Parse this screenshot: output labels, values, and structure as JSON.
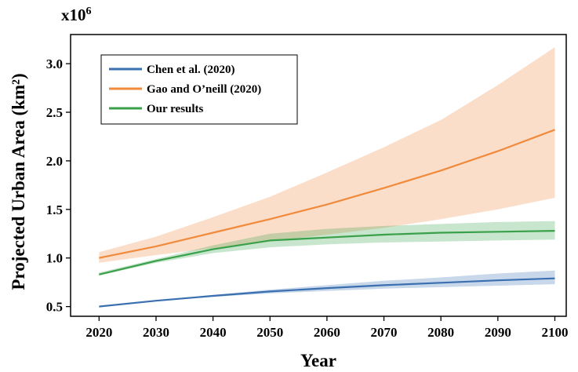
{
  "chart_data": {
    "type": "line",
    "multiplier_base": "x10",
    "multiplier_exp": "6",
    "xlabel": "Year",
    "ylabel": "Projected Urban Area (km²)",
    "xlim": [
      2015,
      2102
    ],
    "ylim": [
      0.4,
      3.3
    ],
    "x_ticks": [
      2020,
      2030,
      2040,
      2050,
      2060,
      2070,
      2080,
      2090,
      2100
    ],
    "y_ticks": [
      0.5,
      1.0,
      1.5,
      2.0,
      2.5,
      3.0
    ],
    "y_tick_labels": [
      "0.5",
      "1.0",
      "1.5",
      "2.0",
      "2.5",
      "3.0"
    ],
    "grid": false,
    "legend_position": "top-left",
    "x": [
      2020,
      2030,
      2040,
      2050,
      2060,
      2070,
      2080,
      2090,
      2100
    ],
    "series": [
      {
        "name": "Chen et al. (2020)",
        "color": "#3a6fb0",
        "values": [
          0.5,
          0.56,
          0.61,
          0.655,
          0.69,
          0.72,
          0.745,
          0.77,
          0.79
        ],
        "lower": [
          0.5,
          0.555,
          0.6,
          0.635,
          0.66,
          0.685,
          0.7,
          0.715,
          0.73
        ],
        "upper": [
          0.5,
          0.565,
          0.62,
          0.675,
          0.72,
          0.765,
          0.8,
          0.84,
          0.87
        ]
      },
      {
        "name": "Gao and O’neill (2020)",
        "color": "#f08a3c",
        "values": [
          1.0,
          1.12,
          1.26,
          1.4,
          1.55,
          1.72,
          1.9,
          2.1,
          2.32
        ],
        "lower": [
          0.95,
          1.03,
          1.1,
          1.17,
          1.24,
          1.31,
          1.4,
          1.5,
          1.62
        ],
        "upper": [
          1.06,
          1.22,
          1.42,
          1.63,
          1.88,
          2.14,
          2.42,
          2.78,
          3.17
        ]
      },
      {
        "name": "Our results",
        "color": "#3aa04a",
        "values": [
          0.83,
          0.97,
          1.09,
          1.18,
          1.21,
          1.24,
          1.26,
          1.27,
          1.28
        ],
        "lower": [
          0.82,
          0.95,
          1.05,
          1.11,
          1.14,
          1.16,
          1.17,
          1.18,
          1.19
        ],
        "upper": [
          0.85,
          0.99,
          1.13,
          1.25,
          1.3,
          1.33,
          1.35,
          1.37,
          1.38
        ]
      }
    ]
  }
}
